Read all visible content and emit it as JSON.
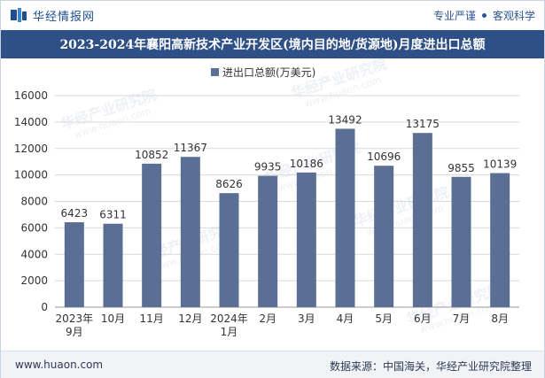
{
  "header": {
    "brand_name": "华经情报网",
    "slogan_left": "专业严谨",
    "slogan_right": "客观科学",
    "brand_logo_icon": "huajing-logo-icon"
  },
  "title": "2023-2024年襄阳高新技术产业开发区(境内目的地/货源地)月度进出口总额",
  "watermark": {
    "text": "华经产业研究院",
    "url": "www.huaon.com"
  },
  "footer": {
    "site": "www.huaon.com",
    "source": "数据来源：中国海关，华经产业研究院整理"
  },
  "colors": {
    "bar": "#5b6f94",
    "title_bg": "#2f4f87",
    "grid": "#d9d9d9",
    "axis_text": "#333333"
  },
  "chart_data": {
    "type": "bar",
    "categories": [
      [
        "2023年",
        "9月"
      ],
      [
        "10月"
      ],
      [
        "11月"
      ],
      [
        "12月"
      ],
      [
        "2024年",
        "1月"
      ],
      [
        "2月"
      ],
      [
        "3月"
      ],
      [
        "4月"
      ],
      [
        "5月"
      ],
      [
        "6月"
      ],
      [
        "7月"
      ],
      [
        "8月"
      ]
    ],
    "series": [
      {
        "name": "进出口总额(万美元)",
        "values": [
          6423,
          6311,
          10852,
          11367,
          8626,
          9935,
          10186,
          13492,
          10696,
          13175,
          9855,
          10139
        ]
      }
    ],
    "y_ticks": [
      0,
      2000,
      4000,
      6000,
      8000,
      10000,
      12000,
      14000,
      16000
    ],
    "ylim": [
      0,
      16000
    ],
    "legend_position": "top-center",
    "grid": "horizontal"
  }
}
